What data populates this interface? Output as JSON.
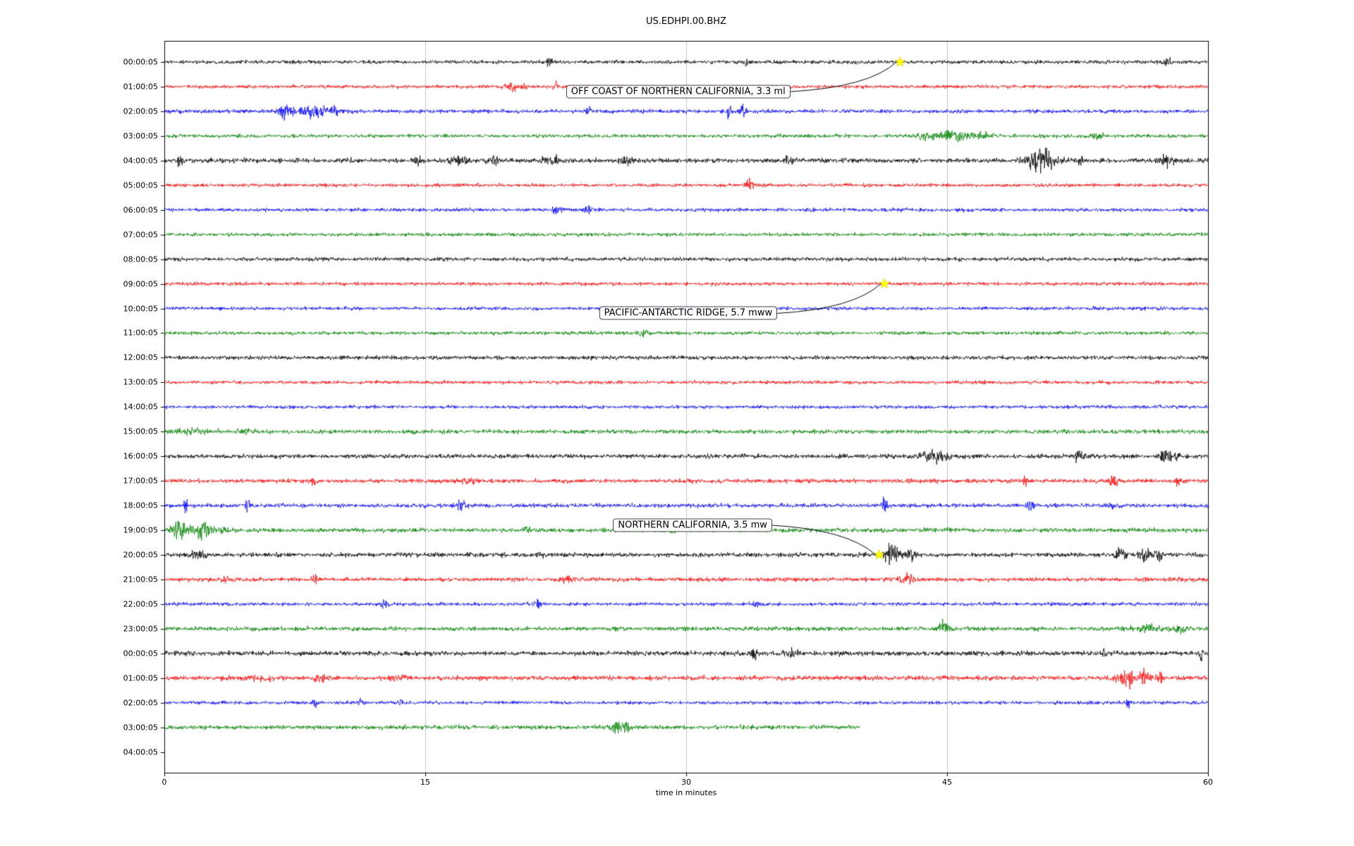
{
  "chart_data": {
    "type": "line",
    "title": "US.EDHPI.00.BHZ",
    "xlabel": "time in minutes",
    "x_range": [
      0,
      60
    ],
    "x_ticks": [
      0,
      15,
      30,
      45,
      60
    ],
    "grid_x": [
      15,
      30,
      45
    ],
    "grid_color": "#c4c4c4",
    "axis_color": "#000000",
    "star_color": "#ffff00",
    "trace_colors": {
      "black": "#000000",
      "red": "#ff0000",
      "blue": "#0000ff",
      "green": "#008000"
    },
    "rows": [
      {
        "label": "00:00:05",
        "color": "black",
        "base": 2.1,
        "end": 60,
        "bursts": [
          {
            "c": 22.2,
            "w": 0.25,
            "a": 4
          },
          {
            "c": 33.5,
            "w": 0.2,
            "a": 2.5
          },
          {
            "c": 57.6,
            "w": 0.3,
            "a": 3
          }
        ]
      },
      {
        "label": "01:00:05",
        "color": "red",
        "base": 2.0,
        "end": 60,
        "bursts": [
          {
            "c": 19.9,
            "w": 0.35,
            "a": 5
          },
          {
            "c": 20.7,
            "w": 0.15,
            "a": 4
          },
          {
            "c": 22.5,
            "w": 0.1,
            "a": 7
          },
          {
            "c": 30.1,
            "w": 0.12,
            "a": 3
          }
        ]
      },
      {
        "label": "02:00:05",
        "color": "blue",
        "base": 2.2,
        "end": 60,
        "bursts": [
          {
            "c": 7.0,
            "w": 0.35,
            "a": 11
          },
          {
            "c": 8.6,
            "w": 0.8,
            "a": 7
          },
          {
            "c": 9.8,
            "w": 0.2,
            "a": 6
          },
          {
            "c": 24.4,
            "w": 0.12,
            "a": 9
          },
          {
            "c": 32.5,
            "w": 0.15,
            "a": 10
          },
          {
            "c": 33.3,
            "w": 0.15,
            "a": 8
          }
        ]
      },
      {
        "label": "03:00:05",
        "color": "green",
        "base": 2.0,
        "end": 60,
        "bursts": [
          {
            "c": 43.6,
            "w": 0.5,
            "a": 4
          },
          {
            "c": 45.2,
            "w": 1.2,
            "a": 4
          },
          {
            "c": 47.0,
            "w": 0.6,
            "a": 3
          },
          {
            "c": 53.6,
            "w": 0.4,
            "a": 3
          }
        ]
      },
      {
        "label": "04:00:05",
        "color": "black",
        "base": 2.7,
        "end": 60,
        "bursts": [
          {
            "c": 0.9,
            "w": 0.2,
            "a": 5
          },
          {
            "c": 14.5,
            "w": 0.3,
            "a": 4
          },
          {
            "c": 16.8,
            "w": 0.6,
            "a": 5
          },
          {
            "c": 19.0,
            "w": 0.15,
            "a": 6
          },
          {
            "c": 22.3,
            "w": 0.5,
            "a": 4
          },
          {
            "c": 26.5,
            "w": 0.4,
            "a": 4
          },
          {
            "c": 36.0,
            "w": 0.3,
            "a": 3.5
          },
          {
            "c": 50.4,
            "w": 0.8,
            "a": 13
          },
          {
            "c": 52.6,
            "w": 0.2,
            "a": 6
          },
          {
            "c": 57.6,
            "w": 0.4,
            "a": 5
          }
        ]
      },
      {
        "label": "05:00:05",
        "color": "red",
        "base": 2.0,
        "end": 60,
        "bursts": [
          {
            "c": 33.6,
            "w": 0.25,
            "a": 5
          }
        ]
      },
      {
        "label": "06:00:05",
        "color": "blue",
        "base": 2.0,
        "end": 60,
        "bursts": [
          {
            "c": 22.6,
            "w": 0.3,
            "a": 4
          },
          {
            "c": 24.5,
            "w": 0.4,
            "a": 4
          }
        ]
      },
      {
        "label": "07:00:05",
        "color": "green",
        "base": 2.0,
        "end": 60,
        "bursts": []
      },
      {
        "label": "08:00:05",
        "color": "black",
        "base": 2.2,
        "end": 60,
        "bursts": []
      },
      {
        "label": "09:00:05",
        "color": "red",
        "base": 2.0,
        "end": 60,
        "bursts": []
      },
      {
        "label": "10:00:05",
        "color": "blue",
        "base": 2.0,
        "end": 60,
        "bursts": []
      },
      {
        "label": "11:00:05",
        "color": "green",
        "base": 2.0,
        "end": 60,
        "bursts": [
          {
            "c": 27.5,
            "w": 0.3,
            "a": 3
          }
        ]
      },
      {
        "label": "12:00:05",
        "color": "black",
        "base": 2.3,
        "end": 60,
        "bursts": []
      },
      {
        "label": "13:00:05",
        "color": "red",
        "base": 2.0,
        "end": 60,
        "bursts": []
      },
      {
        "label": "14:00:05",
        "color": "blue",
        "base": 2.0,
        "end": 60,
        "bursts": []
      },
      {
        "label": "15:00:05",
        "color": "green",
        "base": 2.4,
        "end": 60,
        "bursts": [
          {
            "c": 1.5,
            "w": 1.5,
            "a": 1.5
          },
          {
            "c": 4.8,
            "w": 0.4,
            "a": 2.5
          }
        ]
      },
      {
        "label": "16:00:05",
        "color": "black",
        "base": 2.5,
        "end": 60,
        "bursts": [
          {
            "c": 44.3,
            "w": 0.7,
            "a": 7
          },
          {
            "c": 52.6,
            "w": 0.25,
            "a": 6
          },
          {
            "c": 57.6,
            "w": 0.35,
            "a": 8
          },
          {
            "c": 58.2,
            "w": 0.15,
            "a": 6
          }
        ]
      },
      {
        "label": "17:00:05",
        "color": "red",
        "base": 2.4,
        "end": 60,
        "bursts": [
          {
            "c": 8.6,
            "w": 0.15,
            "a": 5
          },
          {
            "c": 17.5,
            "w": 0.5,
            "a": 3.5
          },
          {
            "c": 49.5,
            "w": 0.15,
            "a": 6
          },
          {
            "c": 54.6,
            "w": 0.2,
            "a": 7
          },
          {
            "c": 58.3,
            "w": 0.2,
            "a": 4
          }
        ]
      },
      {
        "label": "18:00:05",
        "color": "blue",
        "base": 2.4,
        "end": 60,
        "bursts": [
          {
            "c": 1.2,
            "w": 0.12,
            "a": 10
          },
          {
            "c": 4.8,
            "w": 0.15,
            "a": 8
          },
          {
            "c": 17.0,
            "w": 0.4,
            "a": 4
          },
          {
            "c": 41.4,
            "w": 0.12,
            "a": 11
          },
          {
            "c": 49.8,
            "w": 0.15,
            "a": 8
          },
          {
            "c": 54.5,
            "w": 0.15,
            "a": 6
          }
        ]
      },
      {
        "label": "19:00:05",
        "color": "green",
        "base": 2.5,
        "end": 60,
        "bursts": [
          {
            "c": 0.8,
            "w": 0.4,
            "a": 8
          },
          {
            "c": 2.2,
            "w": 0.7,
            "a": 7
          },
          {
            "c": 3.5,
            "w": 0.3,
            "a": 4
          },
          {
            "c": 20.8,
            "w": 0.2,
            "a": 4
          },
          {
            "c": 29.2,
            "w": 0.3,
            "a": 3
          }
        ]
      },
      {
        "label": "20:00:05",
        "color": "black",
        "base": 2.5,
        "end": 60,
        "bursts": [
          {
            "c": 2.0,
            "w": 0.5,
            "a": 4
          },
          {
            "c": 21.6,
            "w": 0.15,
            "a": 5
          },
          {
            "c": 41.9,
            "w": 0.45,
            "a": 12
          },
          {
            "c": 43.0,
            "w": 0.4,
            "a": 5
          },
          {
            "c": 55.0,
            "w": 0.3,
            "a": 7
          },
          {
            "c": 56.5,
            "w": 0.5,
            "a": 6
          },
          {
            "c": 57.3,
            "w": 0.2,
            "a": 5
          }
        ]
      },
      {
        "label": "21:00:05",
        "color": "red",
        "base": 2.4,
        "end": 60,
        "bursts": [
          {
            "c": 3.6,
            "w": 0.2,
            "a": 4
          },
          {
            "c": 8.6,
            "w": 0.2,
            "a": 4
          },
          {
            "c": 23.2,
            "w": 0.3,
            "a": 4
          },
          {
            "c": 42.6,
            "w": 0.5,
            "a": 5
          }
        ]
      },
      {
        "label": "22:00:05",
        "color": "blue",
        "base": 2.0,
        "end": 60,
        "bursts": [
          {
            "c": 12.6,
            "w": 0.2,
            "a": 4
          },
          {
            "c": 21.5,
            "w": 0.15,
            "a": 6
          },
          {
            "c": 34.0,
            "w": 0.3,
            "a": 3
          }
        ]
      },
      {
        "label": "23:00:05",
        "color": "green",
        "base": 2.4,
        "end": 60,
        "bursts": [
          {
            "c": 44.8,
            "w": 0.3,
            "a": 7
          },
          {
            "c": 56.5,
            "w": 0.8,
            "a": 3
          },
          {
            "c": 58.5,
            "w": 0.3,
            "a": 3
          }
        ]
      },
      {
        "label": "00:00:05",
        "color": "black",
        "base": 2.7,
        "end": 60,
        "bursts": [
          {
            "c": 33.9,
            "w": 0.15,
            "a": 8
          },
          {
            "c": 36.2,
            "w": 0.4,
            "a": 4
          },
          {
            "c": 54.0,
            "w": 0.15,
            "a": 5
          },
          {
            "c": 59.6,
            "w": 0.1,
            "a": 6
          }
        ]
      },
      {
        "label": "01:00:05",
        "color": "red",
        "base": 2.6,
        "end": 60,
        "bursts": [
          {
            "c": 5.0,
            "w": 1.5,
            "a": 1.5
          },
          {
            "c": 9.0,
            "w": 0.3,
            "a": 4
          },
          {
            "c": 13.5,
            "w": 0.4,
            "a": 3
          },
          {
            "c": 55.3,
            "w": 0.5,
            "a": 9
          },
          {
            "c": 56.3,
            "w": 0.3,
            "a": 7
          },
          {
            "c": 57.2,
            "w": 0.15,
            "a": 6
          }
        ]
      },
      {
        "label": "02:00:05",
        "color": "blue",
        "base": 2.0,
        "end": 60,
        "bursts": [
          {
            "c": 8.7,
            "w": 0.15,
            "a": 4
          },
          {
            "c": 11.3,
            "w": 0.15,
            "a": 5
          },
          {
            "c": 13.6,
            "w": 0.2,
            "a": 4
          },
          {
            "c": 55.4,
            "w": 0.12,
            "a": 6
          }
        ]
      },
      {
        "label": "03:00:05",
        "color": "green",
        "base": 2.4,
        "end": 40,
        "bursts": [
          {
            "c": 26.0,
            "w": 0.3,
            "a": 9
          },
          {
            "c": 26.6,
            "w": 0.2,
            "a": 5
          }
        ]
      },
      {
        "label": "04:00:05",
        "color": "black",
        "base": 0,
        "end": 0,
        "bursts": []
      }
    ],
    "events": [
      {
        "text": "OFF COAST OF NORTHERN CALIFORNIA, 3.3 ml",
        "row": 0,
        "minute": 42.3,
        "label_minute": 23.1,
        "label_row": 1.2
      },
      {
        "text": "PACIFIC-ANTARCTIC RIDGE, 5.7 mww",
        "row": 9,
        "minute": 41.4,
        "label_minute": 25.0,
        "label_row": 10.2
      },
      {
        "text": "NORTHERN CALIFORNIA, 3.5 mw",
        "row": 20,
        "minute": 41.1,
        "label_minute": 25.8,
        "label_row": 18.8
      }
    ]
  }
}
